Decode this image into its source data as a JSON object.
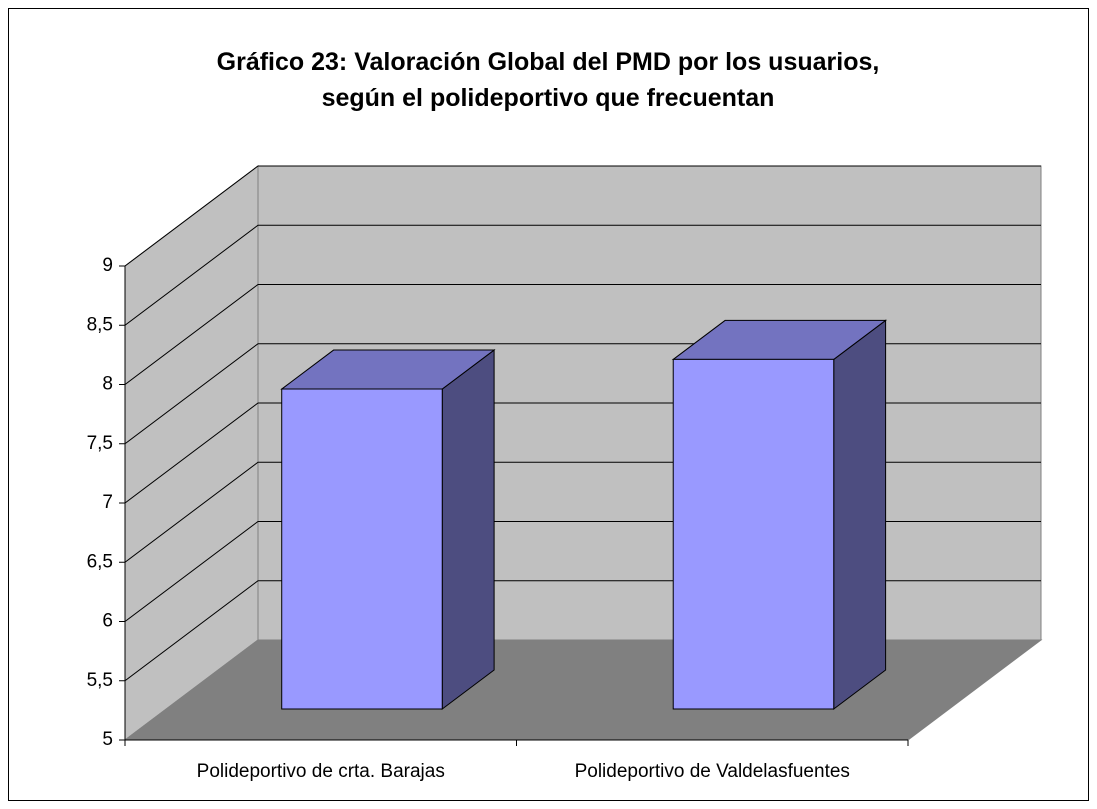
{
  "chart_data": {
    "type": "bar3d",
    "title": "Gráfico 23: Valoración Global del PMD por los usuarios, según el polideportivo que frecuentan",
    "categories": [
      "Polideportivo de crta. Barajas",
      "Polideportivo de Valdelasfuentes"
    ],
    "values": [
      7.7,
      7.95
    ],
    "color": "#9999ff",
    "ylim": [
      5,
      9
    ],
    "yticks": [
      5,
      {
        "value": 5.5,
        "label": "5,5"
      },
      6,
      {
        "value": 6.5,
        "label": "6,5"
      },
      7,
      {
        "value": 7.5,
        "label": "7,5"
      },
      8,
      {
        "value": 8.5,
        "label": "8,5"
      },
      9
    ],
    "grid": true
  }
}
